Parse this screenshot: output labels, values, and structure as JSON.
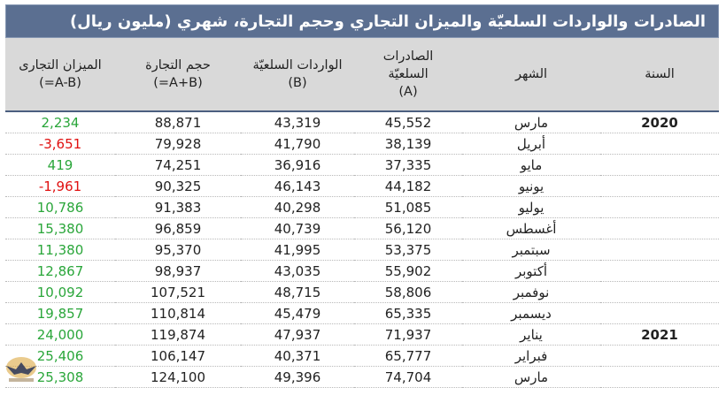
{
  "title": "الصادرات والواردات السلعيّة والميزان التجاري وحجم التجارة، شهري (مليون ريال)",
  "headers": {
    "balance": [
      "الميزان التجارى",
      "(=A-B)"
    ],
    "volume": [
      "حجم التجارة",
      "(=A+B)"
    ],
    "imports": [
      "الواردات السلعيّة",
      "(B)"
    ],
    "exports": [
      "الصادرات",
      "السلعيّة",
      "(A)"
    ],
    "month": "الشهر",
    "year": "السنة"
  },
  "rows": [
    {
      "year": "2020",
      "month": "مارس",
      "exports": "45,552",
      "imports": "43,319",
      "volume": "88,871",
      "balance": "2,234",
      "sign": "pos"
    },
    {
      "year": "",
      "month": "أبريل",
      "exports": "38,139",
      "imports": "41,790",
      "volume": "79,928",
      "balance": "-3,651",
      "sign": "neg"
    },
    {
      "year": "",
      "month": "مايو",
      "exports": "37,335",
      "imports": "36,916",
      "volume": "74,251",
      "balance": "419",
      "sign": "pos"
    },
    {
      "year": "",
      "month": "يونيو",
      "exports": "44,182",
      "imports": "46,143",
      "volume": "90,325",
      "balance": "-1,961",
      "sign": "neg"
    },
    {
      "year": "",
      "month": "يوليو",
      "exports": "51,085",
      "imports": "40,298",
      "volume": "91,383",
      "balance": "10,786",
      "sign": "pos"
    },
    {
      "year": "",
      "month": "أغسطس",
      "exports": "56,120",
      "imports": "40,739",
      "volume": "96,859",
      "balance": "15,380",
      "sign": "pos"
    },
    {
      "year": "",
      "month": "سبتمبر",
      "exports": "53,375",
      "imports": "41,995",
      "volume": "95,370",
      "balance": "11,380",
      "sign": "pos"
    },
    {
      "year": "",
      "month": "أكتوبر",
      "exports": "55,902",
      "imports": "43,035",
      "volume": "98,937",
      "balance": "12,867",
      "sign": "pos"
    },
    {
      "year": "",
      "month": "نوفمبر",
      "exports": "58,806",
      "imports": "48,715",
      "volume": "107,521",
      "balance": "10,092",
      "sign": "pos"
    },
    {
      "year": "",
      "month": "ديسمبر",
      "exports": "65,335",
      "imports": "45,479",
      "volume": "110,814",
      "balance": "19,857",
      "sign": "pos"
    },
    {
      "year": "2021",
      "month": "يناير",
      "exports": "71,937",
      "imports": "47,937",
      "volume": "119,874",
      "balance": "24,000",
      "sign": "pos"
    },
    {
      "year": "",
      "month": "فبراير",
      "exports": "65,777",
      "imports": "40,371",
      "volume": "106,147",
      "balance": "25,406",
      "sign": "pos"
    },
    {
      "year": "",
      "month": "مارس",
      "exports": "74,704",
      "imports": "49,396",
      "volume": "124,100",
      "balance": "25,308",
      "sign": "pos"
    }
  ],
  "colors": {
    "title_bg": "#5b6f91",
    "header_bg": "#d9d9d9",
    "positive": "#2aa63a",
    "negative": "#e01010"
  },
  "watermark_icon": "eagle-logo-icon"
}
